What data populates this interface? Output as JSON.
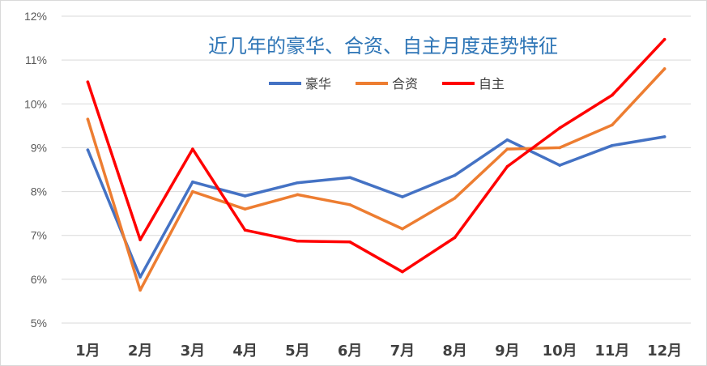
{
  "chart_data": {
    "type": "line",
    "title": "近几年的豪华、合资、自主月度走势特征",
    "categories": [
      "1月",
      "2月",
      "3月",
      "4月",
      "5月",
      "6月",
      "7月",
      "8月",
      "9月",
      "10月",
      "11月",
      "12月"
    ],
    "y_tick_labels": [
      "5%",
      "6%",
      "7%",
      "8%",
      "9%",
      "10%",
      "11%",
      "12%"
    ],
    "ylim": [
      5,
      12
    ],
    "grid": true,
    "legend_position": "top",
    "series": [
      {
        "name": "豪华",
        "color": "#4472c4",
        "values": [
          8.95,
          6.05,
          8.22,
          7.9,
          8.2,
          8.32,
          7.88,
          8.37,
          9.18,
          8.6,
          9.05,
          9.25
        ]
      },
      {
        "name": "合资",
        "color": "#ed7d31",
        "values": [
          9.65,
          5.75,
          8.0,
          7.6,
          7.93,
          7.7,
          7.15,
          7.85,
          8.97,
          9.0,
          9.52,
          10.8
        ]
      },
      {
        "name": "自主",
        "color": "#ff0000",
        "values": [
          10.5,
          6.9,
          8.97,
          7.12,
          6.87,
          6.85,
          6.17,
          6.95,
          8.57,
          9.45,
          10.2,
          11.47
        ]
      }
    ]
  }
}
